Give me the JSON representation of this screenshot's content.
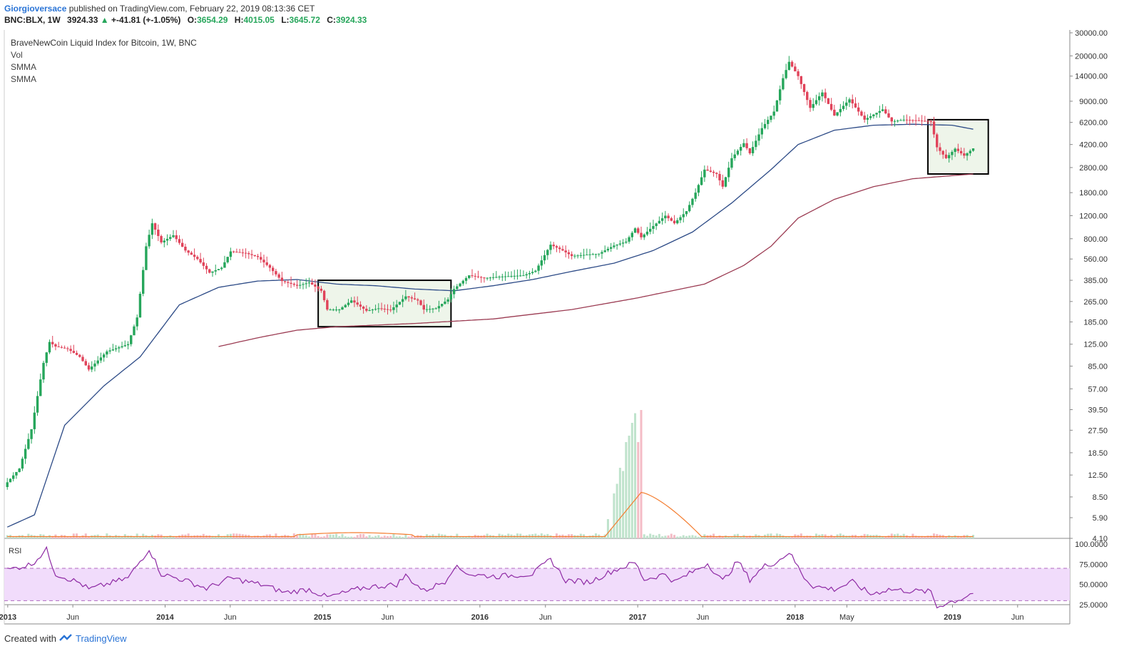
{
  "header": {
    "author": "Giorgioversace",
    "published": "published on TradingView.com, February 22, 2019 08:13:36 CET",
    "symbol": "BNC:BLX, 1W",
    "last": "3924.33",
    "change": "+-41.81 (+-1.05%)",
    "o_label": "O:",
    "o": "3654.29",
    "h_label": "H:",
    "h": "4015.05",
    "l_label": "L:",
    "l": "3645.72",
    "c_label": "C:",
    "c": "3924.33"
  },
  "legend": {
    "title": "BraveNewCoin Liquid Index for Bitcoin, 1W, BNC",
    "items": [
      "Vol",
      "SMMA",
      "SMMA"
    ]
  },
  "footer": {
    "created_with": "Created with",
    "brand": "TradingView"
  },
  "colors": {
    "up": "#26a65b",
    "down": "#e0435a",
    "smma_fast": "#2c4a86",
    "smma_slow": "#9b3b52",
    "vol_ma": "#f47c2e",
    "rsi": "#8e2aa4",
    "rsi_band": "#f1dcfb",
    "box_fill": "#eef5ea"
  },
  "chart_data": {
    "type": "candlestick",
    "price_axis_ticks": [
      "30000.00",
      "20000.00",
      "14000.00",
      "9000.00",
      "6200.00",
      "4200.00",
      "2800.00",
      "1800.00",
      "1200.00",
      "800.00",
      "560.00",
      "385.00",
      "265.00",
      "185.00",
      "125.00",
      "85.00",
      "57.00",
      "39.50",
      "27.50",
      "18.50",
      "12.50",
      "8.50",
      "5.90",
      "4.10"
    ],
    "rsi_axis_ticks": [
      "100.0000",
      "75.0000",
      "50.0000",
      "25.0000"
    ],
    "time_axis": [
      {
        "label": "2013",
        "bold": true
      },
      {
        "label": "Jun",
        "bold": false
      },
      {
        "label": "2014",
        "bold": true
      },
      {
        "label": "Jun",
        "bold": false
      },
      {
        "label": "2015",
        "bold": true
      },
      {
        "label": "Jun",
        "bold": false
      },
      {
        "label": "2016",
        "bold": true
      },
      {
        "label": "Jun",
        "bold": false
      },
      {
        "label": "2017",
        "bold": true
      },
      {
        "label": "Jun",
        "bold": false
      },
      {
        "label": "2018",
        "bold": true
      },
      {
        "label": "May",
        "bold": false
      },
      {
        "label": "2019",
        "bold": true
      },
      {
        "label": "Jun",
        "bold": false
      }
    ],
    "rsi_label": "RSI",
    "price_anchors": [
      [
        "2012-12-31",
        11
      ],
      [
        "2013-01-28",
        14
      ],
      [
        "2013-02-25",
        28
      ],
      [
        "2013-03-25",
        90
      ],
      [
        "2013-04-08",
        130
      ],
      [
        "2013-04-22",
        120
      ],
      [
        "2013-05-20",
        115
      ],
      [
        "2013-06-17",
        100
      ],
      [
        "2013-07-08",
        80
      ],
      [
        "2013-08-19",
        110
      ],
      [
        "2013-10-07",
        125
      ],
      [
        "2013-10-28",
        200
      ],
      [
        "2013-11-18",
        700
      ],
      [
        "2013-12-02",
        1050
      ],
      [
        "2013-12-23",
        750
      ],
      [
        "2014-01-20",
        850
      ],
      [
        "2014-02-17",
        650
      ],
      [
        "2014-03-17",
        560
      ],
      [
        "2014-04-14",
        440
      ],
      [
        "2014-05-12",
        480
      ],
      [
        "2014-06-02",
        640
      ],
      [
        "2014-07-07",
        620
      ],
      [
        "2014-08-04",
        580
      ],
      [
        "2014-09-01",
        480
      ],
      [
        "2014-09-29",
        380
      ],
      [
        "2014-11-03",
        350
      ],
      [
        "2014-12-01",
        370
      ],
      [
        "2014-12-29",
        320
      ],
      [
        "2015-01-12",
        230
      ],
      [
        "2015-02-09",
        230
      ],
      [
        "2015-03-09",
        270
      ],
      [
        "2015-04-13",
        225
      ],
      [
        "2015-05-11",
        235
      ],
      [
        "2015-06-08",
        228
      ],
      [
        "2015-07-13",
        290
      ],
      [
        "2015-08-10",
        270
      ],
      [
        "2015-08-24",
        230
      ],
      [
        "2015-09-21",
        235
      ],
      [
        "2015-10-19",
        275
      ],
      [
        "2015-11-02",
        330
      ],
      [
        "2015-12-07",
        420
      ],
      [
        "2016-01-11",
        400
      ],
      [
        "2016-02-15",
        410
      ],
      [
        "2016-03-14",
        415
      ],
      [
        "2016-04-11",
        420
      ],
      [
        "2016-05-09",
        455
      ],
      [
        "2016-06-13",
        720
      ],
      [
        "2016-07-11",
        650
      ],
      [
        "2016-08-01",
        590
      ],
      [
        "2016-09-05",
        605
      ],
      [
        "2016-10-03",
        615
      ],
      [
        "2016-11-07",
        710
      ],
      [
        "2016-12-05",
        760
      ],
      [
        "2016-12-26",
        960
      ],
      [
        "2017-01-09",
        820
      ],
      [
        "2017-02-06",
        1000
      ],
      [
        "2017-03-06",
        1200
      ],
      [
        "2017-03-27",
        1050
      ],
      [
        "2017-04-24",
        1300
      ],
      [
        "2017-05-15",
        1800
      ],
      [
        "2017-06-05",
        2700
      ],
      [
        "2017-07-03",
        2500
      ],
      [
        "2017-07-17",
        2000
      ],
      [
        "2017-08-07",
        3300
      ],
      [
        "2017-09-04",
        4300
      ],
      [
        "2017-09-18",
        3600
      ],
      [
        "2017-10-16",
        5600
      ],
      [
        "2017-11-13",
        7500
      ],
      [
        "2017-12-04",
        13500
      ],
      [
        "2017-12-18",
        18000
      ],
      [
        "2018-01-08",
        14000
      ],
      [
        "2018-02-05",
        8000
      ],
      [
        "2018-03-05",
        10500
      ],
      [
        "2018-04-02",
        7000
      ],
      [
        "2018-05-07",
        9300
      ],
      [
        "2018-06-11",
        6500
      ],
      [
        "2018-07-23",
        7800
      ],
      [
        "2018-08-13",
        6300
      ],
      [
        "2018-09-10",
        6500
      ],
      [
        "2018-10-15",
        6400
      ],
      [
        "2018-11-12",
        6300
      ],
      [
        "2018-11-26",
        4000
      ],
      [
        "2018-12-17",
        3300
      ],
      [
        "2019-01-07",
        3900
      ],
      [
        "2019-01-28",
        3450
      ],
      [
        "2019-02-18",
        3924
      ]
    ],
    "rsi_anchors": [
      [
        "2012-12-31",
        68
      ],
      [
        "2013-02-25",
        75
      ],
      [
        "2013-04-01",
        93
      ],
      [
        "2013-04-22",
        63
      ],
      [
        "2013-06-17",
        52
      ],
      [
        "2013-07-08",
        44
      ],
      [
        "2013-10-07",
        58
      ],
      [
        "2013-11-25",
        94
      ],
      [
        "2013-12-23",
        63
      ],
      [
        "2014-02-17",
        55
      ],
      [
        "2014-04-07",
        45
      ],
      [
        "2014-06-02",
        58
      ],
      [
        "2014-08-18",
        49
      ],
      [
        "2014-10-06",
        40
      ],
      [
        "2014-12-01",
        44
      ],
      [
        "2015-01-12",
        34
      ],
      [
        "2015-04-06",
        46
      ],
      [
        "2015-06-22",
        50
      ],
      [
        "2015-07-13",
        61
      ],
      [
        "2015-08-24",
        42
      ],
      [
        "2015-10-12",
        54
      ],
      [
        "2015-11-02",
        72
      ],
      [
        "2015-12-14",
        62
      ],
      [
        "2016-02-08",
        60
      ],
      [
        "2016-05-02",
        63
      ],
      [
        "2016-06-13",
        81
      ],
      [
        "2016-07-18",
        55
      ],
      [
        "2016-09-12",
        53
      ],
      [
        "2016-10-31",
        66
      ],
      [
        "2016-12-26",
        77
      ],
      [
        "2017-01-16",
        56
      ],
      [
        "2017-03-06",
        63
      ],
      [
        "2017-03-27",
        53
      ],
      [
        "2017-06-12",
        76
      ],
      [
        "2017-07-17",
        54
      ],
      [
        "2017-08-21",
        79
      ],
      [
        "2017-09-18",
        56
      ],
      [
        "2017-10-23",
        73
      ],
      [
        "2017-11-20",
        78
      ],
      [
        "2017-12-18",
        90
      ],
      [
        "2018-01-22",
        59
      ],
      [
        "2018-02-12",
        48
      ],
      [
        "2018-04-02",
        44
      ],
      [
        "2018-05-14",
        53
      ],
      [
        "2018-06-25",
        38
      ],
      [
        "2018-08-06",
        44
      ],
      [
        "2018-09-24",
        42
      ],
      [
        "2018-11-12",
        41
      ],
      [
        "2018-11-26",
        22
      ],
      [
        "2018-12-17",
        27
      ],
      [
        "2019-01-21",
        32
      ],
      [
        "2019-02-18",
        40
      ]
    ],
    "smma_fast_anchors": [
      [
        "2012-12-31",
        5
      ],
      [
        "2013-03-04",
        6.2
      ],
      [
        "2013-05-13",
        30
      ],
      [
        "2013-08-12",
        60
      ],
      [
        "2013-11-04",
        100
      ],
      [
        "2014-02-03",
        250
      ],
      [
        "2014-05-05",
        340
      ],
      [
        "2014-08-04",
        380
      ],
      [
        "2014-11-03",
        390
      ],
      [
        "2015-02-02",
        360
      ],
      [
        "2015-05-04",
        350
      ],
      [
        "2015-08-03",
        330
      ],
      [
        "2015-11-02",
        320
      ],
      [
        "2016-02-01",
        350
      ],
      [
        "2016-05-02",
        390
      ],
      [
        "2016-08-01",
        450
      ],
      [
        "2016-11-07",
        520
      ],
      [
        "2017-02-06",
        650
      ],
      [
        "2017-05-08",
        900
      ],
      [
        "2017-08-07",
        1500
      ],
      [
        "2017-11-06",
        2700
      ],
      [
        "2018-01-08",
        4200
      ],
      [
        "2018-04-02",
        5400
      ],
      [
        "2018-07-02",
        5900
      ],
      [
        "2018-10-01",
        6000
      ],
      [
        "2018-12-31",
        5900
      ],
      [
        "2019-02-18",
        5500
      ]
    ],
    "smma_slow_anchors": [
      [
        "2014-05-05",
        120
      ],
      [
        "2014-08-04",
        140
      ],
      [
        "2014-11-03",
        160
      ],
      [
        "2015-02-02",
        170
      ],
      [
        "2015-08-03",
        180
      ],
      [
        "2016-02-01",
        195
      ],
      [
        "2016-08-01",
        230
      ],
      [
        "2016-12-26",
        280
      ],
      [
        "2017-06-05",
        360
      ],
      [
        "2017-09-04",
        500
      ],
      [
        "2017-11-06",
        700
      ],
      [
        "2018-01-08",
        1150
      ],
      [
        "2018-04-02",
        1600
      ],
      [
        "2018-07-02",
        2000
      ],
      [
        "2018-10-01",
        2300
      ],
      [
        "2019-02-18",
        2500
      ]
    ],
    "volume_spikes": [
      [
        "2016-10-24",
        0.6
      ],
      [
        "2016-10-31",
        0.3
      ],
      [
        "2016-11-07",
        1.4
      ],
      [
        "2016-11-14",
        1.7
      ],
      [
        "2016-11-21",
        2.2
      ],
      [
        "2016-11-28",
        2.1
      ],
      [
        "2016-12-05",
        3.0
      ],
      [
        "2016-12-12",
        3.2
      ],
      [
        "2016-12-19",
        3.6
      ],
      [
        "2016-12-26",
        3.9
      ],
      [
        "2017-01-02",
        3.0
      ],
      [
        "2017-01-09",
        4.0
      ]
    ],
    "highlight_boxes": [
      {
        "start": "2014-12-22",
        "end": "2015-10-26",
        "top": 385,
        "bottom": 170
      },
      {
        "start": "2018-11-05",
        "end": "2019-03-25",
        "top": 6500,
        "bottom": 2500
      }
    ]
  }
}
